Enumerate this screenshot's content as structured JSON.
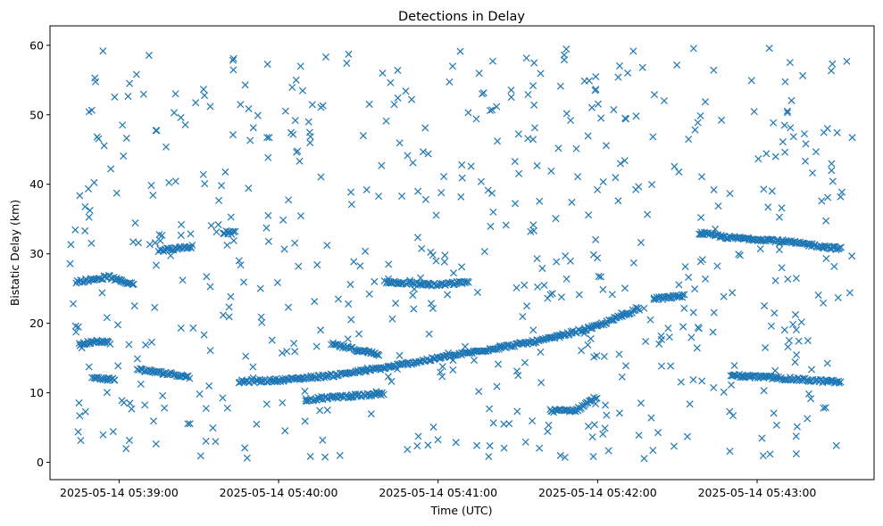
{
  "chart_data": {
    "type": "scatter",
    "title": "Detections in Delay",
    "xlabel": "Time (UTC)",
    "ylabel": "Bistatic Delay (km)",
    "x_ticks": [
      "2025-05-14 05:39:00",
      "2025-05-14 05:40:00",
      "2025-05-14 05:41:00",
      "2025-05-14 05:42:00",
      "2025-05-14 05:43:00"
    ],
    "y_ticks": [
      0,
      10,
      20,
      30,
      40,
      50,
      60
    ],
    "xlim": [
      "2025-05-14 05:38:34",
      "2025-05-14 05:43:44"
    ],
    "ylim": [
      -2.5,
      62.8
    ],
    "marker": "x",
    "color": "#1f77b4",
    "grid": false,
    "series": [
      {
        "trend_tracks": [
          {
            "x": [
              "05:38:44",
              "05:38:50",
              "05:38:56",
              "05:39:02",
              "05:39:06"
            ],
            "y": [
              26.0,
              26.3,
              26.7,
              25.9,
              25.7
            ]
          },
          {
            "x": [
              "05:38:45",
              "05:38:51",
              "05:38:57"
            ],
            "y": [
              16.9,
              17.5,
              17.2
            ]
          },
          {
            "x": [
              "05:38:50",
              "05:38:55",
              "05:38:59"
            ],
            "y": [
              12.1,
              12.0,
              11.9
            ]
          },
          {
            "x": [
              "05:39:07",
              "05:39:13",
              "05:39:20",
              "05:39:27"
            ],
            "y": [
              13.4,
              13.0,
              12.7,
              12.2
            ]
          },
          {
            "x": [
              "05:39:15",
              "05:39:22",
              "05:39:28"
            ],
            "y": [
              30.5,
              30.8,
              31.1
            ]
          },
          {
            "x": [
              "05:39:39",
              "05:39:44"
            ],
            "y": [
              33.1,
              33.0
            ]
          },
          {
            "x": [
              "05:39:45",
              "05:40:00",
              "05:40:20",
              "05:40:40",
              "05:41:00",
              "05:41:20",
              "05:41:40",
              "05:42:00",
              "05:42:16"
            ],
            "y": [
              11.6,
              11.8,
              12.5,
              13.6,
              15.0,
              16.3,
              17.6,
              19.6,
              22.2
            ]
          },
          {
            "x": [
              "05:40:10",
              "05:40:25",
              "05:40:40"
            ],
            "y": [
              9.0,
              9.5,
              9.8
            ]
          },
          {
            "x": [
              "05:40:20",
              "05:40:30",
              "05:40:38"
            ],
            "y": [
              17.0,
              16.1,
              15.5
            ]
          },
          {
            "x": [
              "05:40:40",
              "05:41:00",
              "05:41:12"
            ],
            "y": [
              26.0,
              25.5,
              26.0
            ]
          },
          {
            "x": [
              "05:41:42",
              "05:41:52",
              "05:42:00"
            ],
            "y": [
              7.4,
              7.5,
              9.5
            ]
          },
          {
            "x": [
              "05:42:21",
              "05:42:33"
            ],
            "y": [
              23.5,
              24.0
            ]
          },
          {
            "x": [
              "05:42:38",
              "05:42:50",
              "05:43:05",
              "05:43:20",
              "05:43:32"
            ],
            "y": [
              33.0,
              32.3,
              32.0,
              31.3,
              30.7
            ]
          },
          {
            "x": [
              "05:42:50",
              "05:43:05",
              "05:43:20",
              "05:43:32"
            ],
            "y": [
              12.5,
              12.2,
              11.8,
              11.5
            ]
          }
        ]
      }
    ]
  }
}
